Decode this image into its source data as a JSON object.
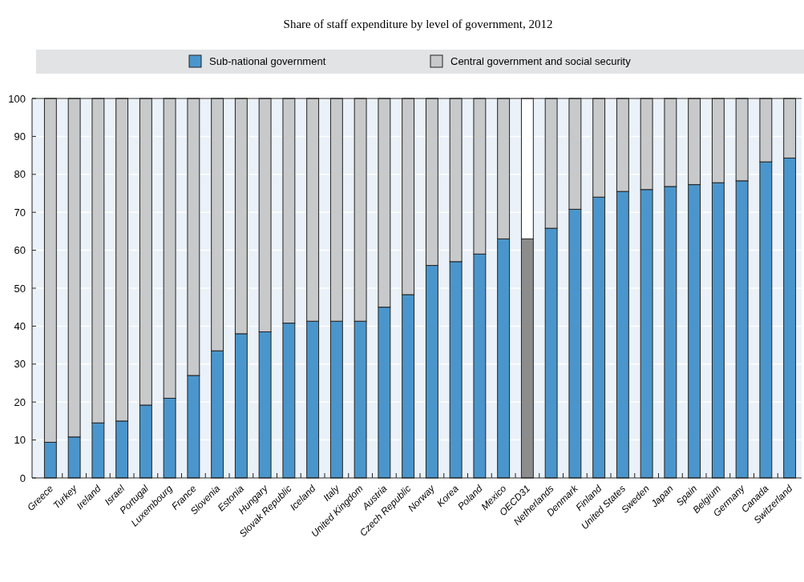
{
  "chart_data": {
    "type": "bar",
    "stacked": true,
    "title": "Share of staff expenditure by level of government, 2012",
    "categories": [
      "Greece",
      "Turkey",
      "Ireland",
      "Israel",
      "Portugal",
      "Luxembourg",
      "France",
      "Slovenia",
      "Estonia",
      "Hungary",
      "Slovak Republic",
      "Iceland",
      "Italy",
      "United Kingdom",
      "Austria",
      "Czech Republic",
      "Norway",
      "Korea",
      "Poland",
      "Mexico",
      "OECD31",
      "Netherlands",
      "Denmark",
      "Finland",
      "United States",
      "Sweden",
      "Japan",
      "Spain",
      "Belgium",
      "Germany",
      "Canada",
      "Switzerland"
    ],
    "series": [
      {
        "name": "Sub-national government",
        "color": "#4a96cc",
        "colors": [
          "#4a96cc",
          "#4a96cc",
          "#4a96cc",
          "#4a96cc",
          "#4a96cc",
          "#4a96cc",
          "#4a96cc",
          "#4a96cc",
          "#4a96cc",
          "#4a96cc",
          "#4a96cc",
          "#4a96cc",
          "#4a96cc",
          "#4a96cc",
          "#4a96cc",
          "#4a96cc",
          "#4a96cc",
          "#4a96cc",
          "#4a96cc",
          "#4a96cc",
          "#8c8c8c",
          "#4a96cc",
          "#4a96cc",
          "#4a96cc",
          "#4a96cc",
          "#4a96cc",
          "#4a96cc",
          "#4a96cc",
          "#4a96cc",
          "#4a96cc",
          "#4a96cc",
          "#4a96cc"
        ],
        "values": [
          9.4,
          10.8,
          14.5,
          15,
          19.2,
          21,
          27,
          33.5,
          38,
          38.5,
          40.8,
          41.3,
          41.3,
          41.3,
          45,
          48.3,
          56,
          57,
          59,
          63,
          63,
          65.8,
          70.8,
          74,
          75.5,
          76,
          76.8,
          77.3,
          77.8,
          78.3,
          83.3,
          84.3
        ]
      },
      {
        "name": "Central government and social security",
        "color": "#c8c9cb",
        "colors": [
          "#c8c9cb",
          "#c8c9cb",
          "#c8c9cb",
          "#c8c9cb",
          "#c8c9cb",
          "#c8c9cb",
          "#c8c9cb",
          "#c8c9cb",
          "#c8c9cb",
          "#c8c9cb",
          "#c8c9cb",
          "#c8c9cb",
          "#c8c9cb",
          "#c8c9cb",
          "#c8c9cb",
          "#c8c9cb",
          "#c8c9cb",
          "#c8c9cb",
          "#c8c9cb",
          "#c8c9cb",
          "#ffffff",
          "#c8c9cb",
          "#c8c9cb",
          "#c8c9cb",
          "#c8c9cb",
          "#c8c9cb",
          "#c8c9cb",
          "#c8c9cb",
          "#c8c9cb",
          "#c8c9cb",
          "#c8c9cb",
          "#c8c9cb"
        ],
        "values": [
          90.6,
          89.2,
          85.5,
          85,
          80.8,
          79,
          73,
          66.5,
          62,
          61.5,
          59.2,
          58.7,
          58.7,
          58.7,
          55,
          51.7,
          44,
          43,
          41,
          37,
          37,
          34.2,
          29.2,
          26,
          24.5,
          24,
          23.2,
          22.7,
          22.2,
          21.7,
          16.7,
          15.7
        ]
      }
    ],
    "ylim": [
      0,
      100
    ],
    "yticks": [
      0,
      10,
      20,
      30,
      40,
      50,
      60,
      70,
      80,
      90,
      100
    ],
    "grid": "y",
    "legend": "top"
  }
}
